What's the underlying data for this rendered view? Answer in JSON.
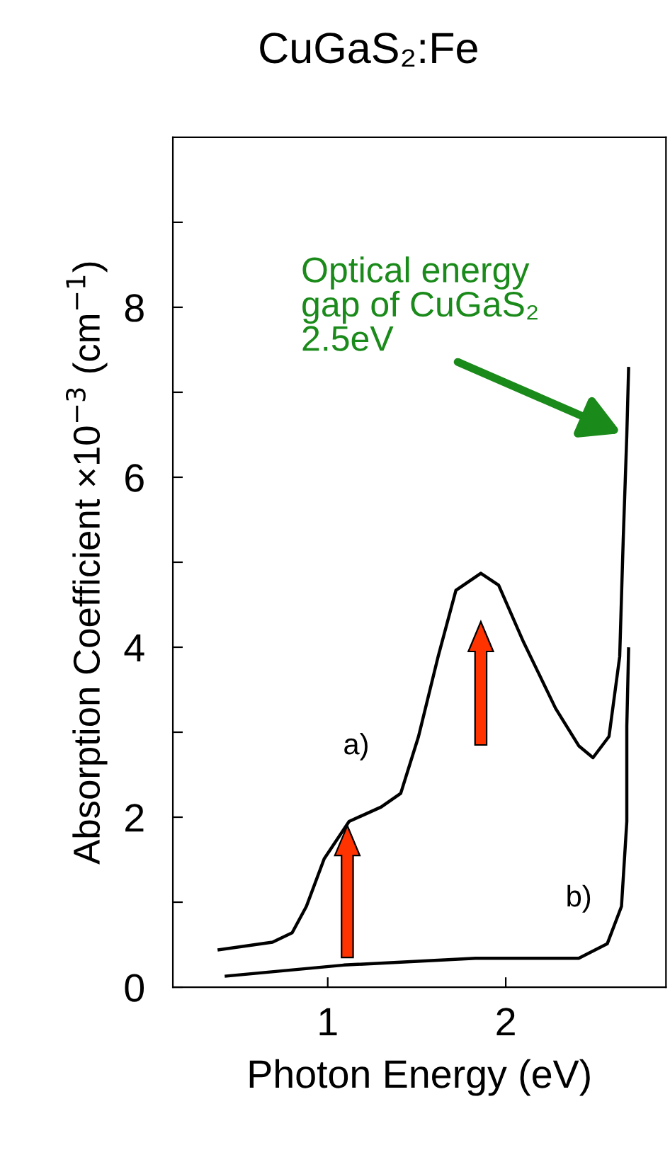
{
  "chart_data": {
    "type": "line",
    "title": "CuGaS₂:Fe",
    "xlabel": "Photon Energy (eV)",
    "ylabel": "Absorption Coefficient ×10$^{−3}$ (cm$^{−1}$)",
    "xlim": [
      0.13,
      2.9
    ],
    "ylim": [
      0,
      10
    ],
    "xticks": [
      1,
      2
    ],
    "yticks": [
      0,
      {
        "value": 1,
        "label": null
      },
      2,
      {
        "value": 3,
        "label": null
      },
      4,
      {
        "value": 5,
        "label": null
      },
      6,
      {
        "value": 7,
        "label": null
      },
      8,
      {
        "value": 9,
        "label": null
      }
    ],
    "grid": false,
    "legend": false,
    "marker": "none",
    "line_style": "solid",
    "series": [
      {
        "name": "a)",
        "color": "#000000",
        "x": [
          0.39,
          0.69,
          0.8,
          0.88,
          0.98,
          1.12,
          1.3,
          1.41,
          1.51,
          1.62,
          1.72,
          1.86,
          1.96,
          2.1,
          2.28,
          2.41,
          2.49,
          2.58,
          2.64,
          2.66,
          2.68,
          2.69
        ],
        "values": [
          0.44,
          0.53,
          0.64,
          0.95,
          1.51,
          1.95,
          2.12,
          2.28,
          2.95,
          3.89,
          4.67,
          4.87,
          4.73,
          4.06,
          3.28,
          2.84,
          2.7,
          2.95,
          3.89,
          5.28,
          6.5,
          7.28
        ]
      },
      {
        "name": "b)",
        "color": "#000000",
        "x": [
          0.43,
          1.09,
          1.83,
          2.41,
          2.57,
          2.65,
          2.68,
          2.68,
          2.69
        ],
        "values": [
          0.13,
          0.26,
          0.34,
          0.34,
          0.51,
          0.95,
          1.95,
          3.07,
          3.98
        ]
      }
    ],
    "annotations": [
      {
        "text": "Optical energy\ngap of CuGaS₂\n2.5eV",
        "x": 2.67,
        "y": 6.5
      }
    ]
  }
}
